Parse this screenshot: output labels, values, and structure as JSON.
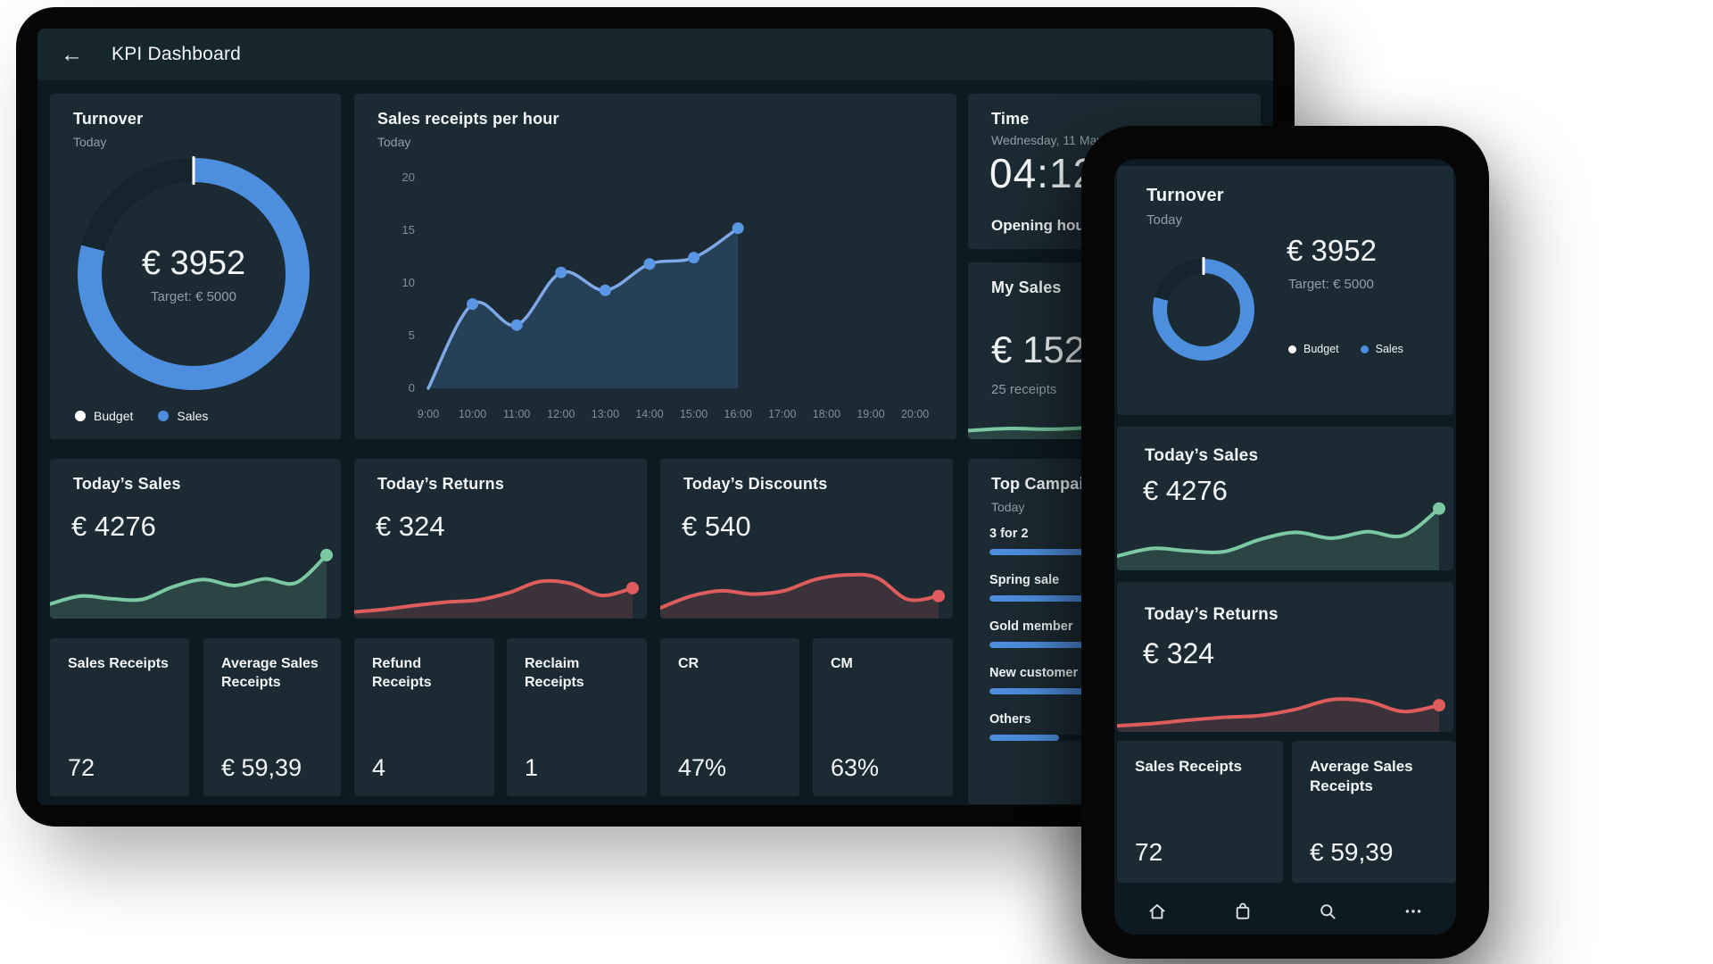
{
  "colors": {
    "canvas_bg": "#ffffff",
    "bezel": "#060606",
    "screen_bg": "#0D1A21",
    "header_bg": "#15262D",
    "card_bg": "#1C2B33",
    "text_primary": "#F2F6F7",
    "text_muted": "#8FA0A7",
    "axis_text": "#7E9097",
    "blue": "#4E8EDE",
    "blue_line": "#7EA8E6",
    "blue_dot": "#5B96E4",
    "blue_fill": "rgba(78,142,222,0.22)",
    "green": "#7BC8A2",
    "green_fill": "rgba(123,200,162,0.16)",
    "red": "#DE5D5C",
    "red_fill": "rgba(222,93,92,0.16)",
    "bar_track": "#0F1E25",
    "donut_rest": "#14242C",
    "nav_icon": "#D7E0E4"
  },
  "tablet": {
    "header": {
      "back": "←",
      "title": "KPI Dashboard"
    },
    "turnover": {
      "title": "Turnover",
      "subtitle": "Today",
      "value": "€ 3952",
      "target": "Target: € 5000",
      "legend": [
        {
          "label": "Budget"
        },
        {
          "label": "Sales"
        }
      ]
    },
    "hourly": {
      "title": "Sales receipts per hour",
      "subtitle": "Today"
    },
    "time": {
      "title": "Time",
      "date": "Wednesday, 11 May",
      "clock": "04:12",
      "opening": "Opening hours"
    },
    "my_sales": {
      "title": "My Sales",
      "value": "€ 1525",
      "receipts": "25 receipts"
    },
    "todays_sales": {
      "title": "Today’s Sales",
      "value": "€ 4276"
    },
    "todays_returns": {
      "title": "Today’s Returns",
      "value": "€ 324"
    },
    "todays_discounts": {
      "title": "Today’s Discounts",
      "value": "€ 540"
    },
    "top_campaigns": {
      "title": "Top Campaigns",
      "subtitle": "Today"
    },
    "stats": [
      {
        "label": "Sales Receipts",
        "value": "72"
      },
      {
        "label": "Average Sales Receipts",
        "value": "€ 59,39"
      },
      {
        "label": "Refund Receipts",
        "value": "4"
      },
      {
        "label": "Reclaim Receipts",
        "value": "1"
      },
      {
        "label": "CR",
        "value": "47%"
      },
      {
        "label": "CM",
        "value": "63%"
      }
    ]
  },
  "phone": {
    "turnover": {
      "title": "Turnover",
      "subtitle": "Today",
      "value": "€ 3952",
      "target": "Target: € 5000",
      "legend": [
        {
          "label": "Budget"
        },
        {
          "label": "Sales"
        }
      ]
    },
    "todays_sales": {
      "title": "Today’s Sales",
      "value": "€ 4276"
    },
    "todays_returns": {
      "title": "Today’s Returns",
      "value": "€ 324"
    },
    "stats": [
      {
        "label": "Sales Receipts",
        "value": "72"
      },
      {
        "label": "Average Sales Receipts",
        "value": "€ 59,39"
      }
    ],
    "nav": {
      "items": [
        {
          "icon": "home"
        },
        {
          "icon": "bag"
        },
        {
          "icon": "search"
        },
        {
          "icon": "more"
        }
      ]
    }
  },
  "chart_data": [
    {
      "id": "turnover-donut",
      "type": "pie",
      "title": "Turnover",
      "subtitle": "Today",
      "labels": [
        "Sales",
        "Budget"
      ],
      "values_percent": [
        79,
        21
      ],
      "center_value": "€ 3952",
      "center_sub": "Target: € 5000",
      "legend": [
        "Budget",
        "Sales"
      ],
      "note": "white tick marker at 12 o'clock"
    },
    {
      "id": "sales-receipts-per-hour",
      "type": "area",
      "title": "Sales receipts per hour",
      "subtitle": "Today",
      "x": [
        "9:00",
        "10:00",
        "11:00",
        "12:00",
        "13:00",
        "14:00",
        "15:00",
        "16:00",
        "17:00",
        "18:00",
        "19:00",
        "20:00"
      ],
      "values": [
        0,
        8,
        6,
        11,
        9.3,
        11.8,
        12.4,
        15.2,
        null,
        null,
        null,
        null
      ],
      "ylim": [
        0,
        20
      ],
      "yticks": [
        0,
        5,
        10,
        15,
        20
      ],
      "grid": false,
      "legend_shown": false
    },
    {
      "id": "spark-todays-sales",
      "type": "area",
      "title": "Today’s Sales trend",
      "values_norm": [
        18,
        30,
        26,
        25,
        44,
        55,
        46,
        56,
        50,
        92
      ],
      "end_dot": true
    },
    {
      "id": "spark-todays-returns",
      "type": "area",
      "title": "Today’s Returns trend",
      "values_norm": [
        6,
        10,
        16,
        21,
        24,
        35,
        52,
        49,
        31,
        42
      ],
      "end_dot": true
    },
    {
      "id": "spark-todays-discounts",
      "type": "area",
      "title": "Today’s Discounts trend",
      "values_norm": [
        12,
        30,
        38,
        33,
        38,
        55,
        62,
        58,
        25,
        30
      ],
      "end_dot": true
    },
    {
      "id": "spark-my-sales",
      "type": "area",
      "title": "My Sales trend",
      "values_norm": [
        22,
        30,
        27,
        33,
        36,
        34,
        40,
        46
      ],
      "end_dot": false
    },
    {
      "id": "top-campaigns",
      "type": "bar",
      "title": "Top Campaigns",
      "subtitle": "Today",
      "categories": [
        "3 for 2",
        "Spring sale",
        "Gold member",
        "New customer",
        "Others"
      ],
      "values_percent": [
        100,
        97,
        93,
        88,
        28
      ]
    }
  ]
}
